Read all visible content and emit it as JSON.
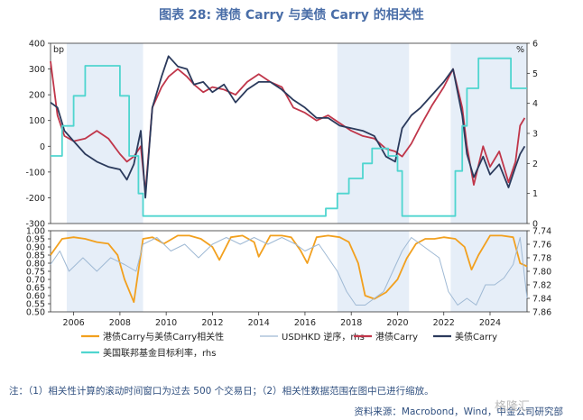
{
  "title": "图表 28: 港债 Carry 与美债 Carry 的相关性",
  "note": "注：（1）相关性计算的滚动时间窗口为过去 500 个交易日；（2）相关性数据范围在图中已进行缩放。",
  "source": "资料来源：Macrobond，Wind，中金公司研究部",
  "watermark": "格隆汇",
  "colors": {
    "hk_carry": "#c0364a",
    "us_carry": "#2b3a5c",
    "fed_rate": "#4fd5cf",
    "correlation": "#f2a01e",
    "usdhkd": "#9fb9d4",
    "recession_band": "#e6eef8",
    "axis": "#333333"
  },
  "chart_data": [
    {
      "type": "line",
      "panel": "top",
      "unit_left": "bp",
      "unit_right": "%",
      "ylim_left": [
        -300,
        400
      ],
      "ylim_right": [
        0,
        6
      ],
      "yticks_left": [
        400,
        300,
        200,
        100,
        0,
        -100,
        -200,
        -300
      ],
      "yticks_right": [
        6,
        5,
        4,
        3,
        2,
        1,
        0
      ],
      "xlim": [
        2005.0,
        2025.6
      ],
      "shaded_periods": [
        [
          2005.7,
          2009.0
        ],
        [
          2017.4,
          2020.5
        ],
        [
          2022.3,
          2025.6
        ]
      ],
      "series": [
        {
          "name": "港债Carry",
          "axis": "left",
          "color_key": "hk_carry",
          "x": [
            2005.0,
            2005.3,
            2005.6,
            2006.0,
            2006.5,
            2007.0,
            2007.5,
            2008.0,
            2008.3,
            2008.6,
            2008.9,
            2009.1,
            2009.4,
            2009.8,
            2010.1,
            2010.5,
            2010.9,
            2011.2,
            2011.6,
            2012.0,
            2012.5,
            2013.0,
            2013.5,
            2014.0,
            2014.5,
            2015.0,
            2015.5,
            2016.0,
            2016.5,
            2017.0,
            2017.5,
            2018.0,
            2018.5,
            2019.0,
            2019.5,
            2019.9,
            2020.2,
            2020.6,
            2021.0,
            2021.5,
            2022.0,
            2022.4,
            2022.8,
            2023.0,
            2023.3,
            2023.7,
            2024.0,
            2024.4,
            2024.8,
            2025.1,
            2025.3,
            2025.5
          ],
          "y": [
            330,
            120,
            40,
            20,
            30,
            60,
            30,
            -30,
            -60,
            -40,
            0,
            -180,
            150,
            230,
            270,
            300,
            270,
            240,
            210,
            230,
            220,
            200,
            250,
            280,
            250,
            230,
            150,
            130,
            100,
            120,
            90,
            60,
            40,
            30,
            -10,
            -20,
            -40,
            10,
            80,
            160,
            230,
            300,
            150,
            0,
            -150,
            0,
            -80,
            -20,
            -140,
            -60,
            80,
            110
          ]
        },
        {
          "name": "美债Carry",
          "axis": "left",
          "color_key": "us_carry",
          "x": [
            2005.0,
            2005.3,
            2005.6,
            2006.0,
            2006.5,
            2007.0,
            2007.5,
            2008.0,
            2008.3,
            2008.6,
            2008.9,
            2009.1,
            2009.4,
            2009.8,
            2010.1,
            2010.5,
            2010.9,
            2011.2,
            2011.6,
            2012.0,
            2012.5,
            2013.0,
            2013.5,
            2014.0,
            2014.5,
            2015.0,
            2015.5,
            2016.0,
            2016.5,
            2017.0,
            2017.5,
            2018.0,
            2018.5,
            2019.0,
            2019.5,
            2019.9,
            2020.2,
            2020.6,
            2021.0,
            2021.5,
            2022.0,
            2022.4,
            2022.8,
            2023.0,
            2023.3,
            2023.7,
            2024.0,
            2024.4,
            2024.8,
            2025.1,
            2025.3,
            2025.5
          ],
          "y": [
            170,
            150,
            60,
            20,
            -30,
            -60,
            -80,
            -90,
            -130,
            -70,
            60,
            -200,
            150,
            270,
            350,
            310,
            300,
            240,
            250,
            210,
            240,
            170,
            220,
            250,
            250,
            220,
            180,
            150,
            110,
            110,
            80,
            70,
            60,
            40,
            -40,
            -60,
            70,
            120,
            150,
            200,
            250,
            300,
            120,
            -30,
            -120,
            -40,
            -110,
            -70,
            -160,
            -80,
            -30,
            0
          ]
        },
        {
          "name": "美国联邦基金目标利率，rhs",
          "axis": "right",
          "color_key": "fed_rate",
          "x": [
            2005.0,
            2005.5,
            2006.0,
            2006.5,
            2007.6,
            2008.0,
            2008.4,
            2008.8,
            2009.0,
            2015.9,
            2016.9,
            2017.4,
            2017.9,
            2018.5,
            2018.9,
            2019.6,
            2020.0,
            2020.2,
            2022.2,
            2022.5,
            2022.8,
            2023.0,
            2023.5,
            2024.6,
            2024.9,
            2025.6
          ],
          "y": [
            2.25,
            3.25,
            4.25,
            5.25,
            5.25,
            4.25,
            2.25,
            1.0,
            0.25,
            0.25,
            0.5,
            1.0,
            1.5,
            2.0,
            2.5,
            2.25,
            1.75,
            0.25,
            0.25,
            1.75,
            3.25,
            4.5,
            5.5,
            5.5,
            4.5,
            4.5
          ]
        }
      ]
    },
    {
      "type": "line",
      "panel": "bottom",
      "ylim_left": [
        0.5,
        1.0
      ],
      "ylim_right": [
        7.86,
        7.74
      ],
      "yticks_left": [
        "1.00",
        "0.95",
        "0.90",
        "0.85",
        "0.80",
        "0.75",
        "0.70",
        "0.65",
        "0.60",
        "0.55",
        "0.50"
      ],
      "yticks_right": [
        "7.74",
        "7.76",
        "7.78",
        "7.80",
        "7.82",
        "7.84",
        "7.86"
      ],
      "xticks": [
        "2006",
        "2008",
        "2010",
        "2012",
        "2014",
        "2016",
        "2018",
        "2020",
        "2022",
        "2024"
      ],
      "xtick_values": [
        2006,
        2008,
        2010,
        2012,
        2014,
        2016,
        2018,
        2020,
        2022,
        2024
      ],
      "series": [
        {
          "name": "港债Carry与美债Carry相关性",
          "axis": "left",
          "color_key": "correlation",
          "x": [
            2005.0,
            2005.5,
            2006.0,
            2006.5,
            2007.0,
            2007.5,
            2007.9,
            2008.2,
            2008.6,
            2009.0,
            2009.4,
            2009.9,
            2010.5,
            2011.0,
            2011.5,
            2012.0,
            2012.3,
            2012.8,
            2013.3,
            2013.8,
            2014.0,
            2014.5,
            2015.0,
            2015.4,
            2015.8,
            2016.1,
            2016.5,
            2017.0,
            2017.5,
            2017.9,
            2018.3,
            2018.6,
            2019.0,
            2019.5,
            2020.0,
            2020.4,
            2020.8,
            2021.2,
            2021.6,
            2022.0,
            2022.5,
            2022.9,
            2023.2,
            2023.5,
            2024.0,
            2024.5,
            2025.0,
            2025.3,
            2025.6
          ],
          "y": [
            0.85,
            0.95,
            0.96,
            0.95,
            0.93,
            0.92,
            0.85,
            0.7,
            0.56,
            0.95,
            0.96,
            0.92,
            0.97,
            0.97,
            0.95,
            0.9,
            0.82,
            0.96,
            0.97,
            0.93,
            0.84,
            0.97,
            0.97,
            0.96,
            0.88,
            0.8,
            0.96,
            0.97,
            0.96,
            0.93,
            0.8,
            0.6,
            0.58,
            0.62,
            0.7,
            0.83,
            0.92,
            0.95,
            0.95,
            0.96,
            0.95,
            0.9,
            0.76,
            0.85,
            0.97,
            0.97,
            0.96,
            0.8,
            0.78
          ]
        },
        {
          "name": "USDHKD 逆序，rhs",
          "axis": "right",
          "color_key": "usdhkd",
          "x": [
            2005.0,
            2005.4,
            2005.8,
            2006.4,
            2007.0,
            2007.6,
            2008.2,
            2008.7,
            2009.0,
            2009.6,
            2010.2,
            2010.8,
            2011.4,
            2012.0,
            2012.6,
            2013.2,
            2013.8,
            2014.4,
            2015.0,
            2015.6,
            2016.0,
            2016.6,
            2017.0,
            2017.4,
            2017.8,
            2018.2,
            2018.6,
            2019.0,
            2019.4,
            2019.8,
            2020.2,
            2020.6,
            2021.0,
            2021.4,
            2021.8,
            2022.2,
            2022.6,
            2023.0,
            2023.4,
            2023.8,
            2024.2,
            2024.6,
            2025.0,
            2025.3,
            2025.6
          ],
          "y": [
            7.79,
            7.77,
            7.8,
            7.78,
            7.8,
            7.78,
            7.79,
            7.8,
            7.76,
            7.75,
            7.77,
            7.76,
            7.78,
            7.76,
            7.75,
            7.76,
            7.75,
            7.76,
            7.75,
            7.76,
            7.77,
            7.76,
            7.78,
            7.8,
            7.83,
            7.85,
            7.85,
            7.84,
            7.83,
            7.8,
            7.77,
            7.75,
            7.76,
            7.77,
            7.78,
            7.83,
            7.85,
            7.84,
            7.85,
            7.82,
            7.82,
            7.81,
            7.79,
            7.75,
            7.84
          ]
        }
      ]
    }
  ],
  "legend": [
    {
      "name": "港债Carry与美债Carry相关性",
      "color_key": "correlation"
    },
    {
      "name": "USDHKD 逆序，rhs",
      "color_key": "usdhkd"
    },
    {
      "name": "港债Carry",
      "color_key": "hk_carry"
    },
    {
      "name": "美债Carry",
      "color_key": "us_carry"
    },
    {
      "name": "美国联邦基金目标利率，rhs",
      "color_key": "fed_rate"
    }
  ]
}
